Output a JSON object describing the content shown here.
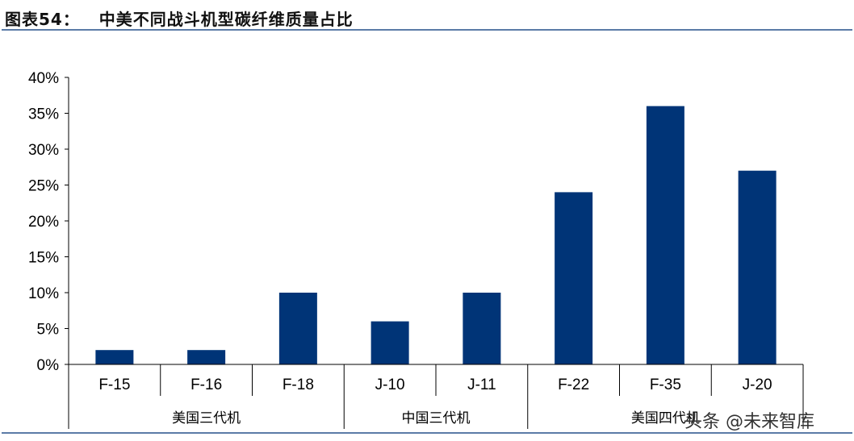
{
  "header": {
    "label": "图表54：",
    "title": "中美不同战斗机型碳纤维质量占比"
  },
  "watermark": "头条 @未来智库",
  "chart_data": {
    "type": "bar",
    "title": "中美不同战斗机型碳纤维质量占比",
    "categories": [
      "F-15",
      "F-16",
      "F-18",
      "J-10",
      "J-11",
      "F-22",
      "F-35",
      "J-20"
    ],
    "groups": [
      {
        "label": "美国三代机",
        "categories": [
          "F-15",
          "F-16",
          "F-18"
        ]
      },
      {
        "label": "中国三代机",
        "categories": [
          "J-10",
          "J-11"
        ]
      },
      {
        "label": "美国四代机",
        "categories": [
          "F-22",
          "F-35",
          "J-20"
        ]
      }
    ],
    "values": [
      2,
      2,
      10,
      6,
      10,
      24,
      36,
      27
    ],
    "ylim": [
      0,
      40
    ],
    "yticks": [
      "0%",
      "5%",
      "10%",
      "15%",
      "20%",
      "25%",
      "30%",
      "35%",
      "40%"
    ],
    "ytick_values": [
      0,
      5,
      10,
      15,
      20,
      25,
      30,
      35,
      40
    ],
    "grid": false,
    "color": "#003477"
  }
}
